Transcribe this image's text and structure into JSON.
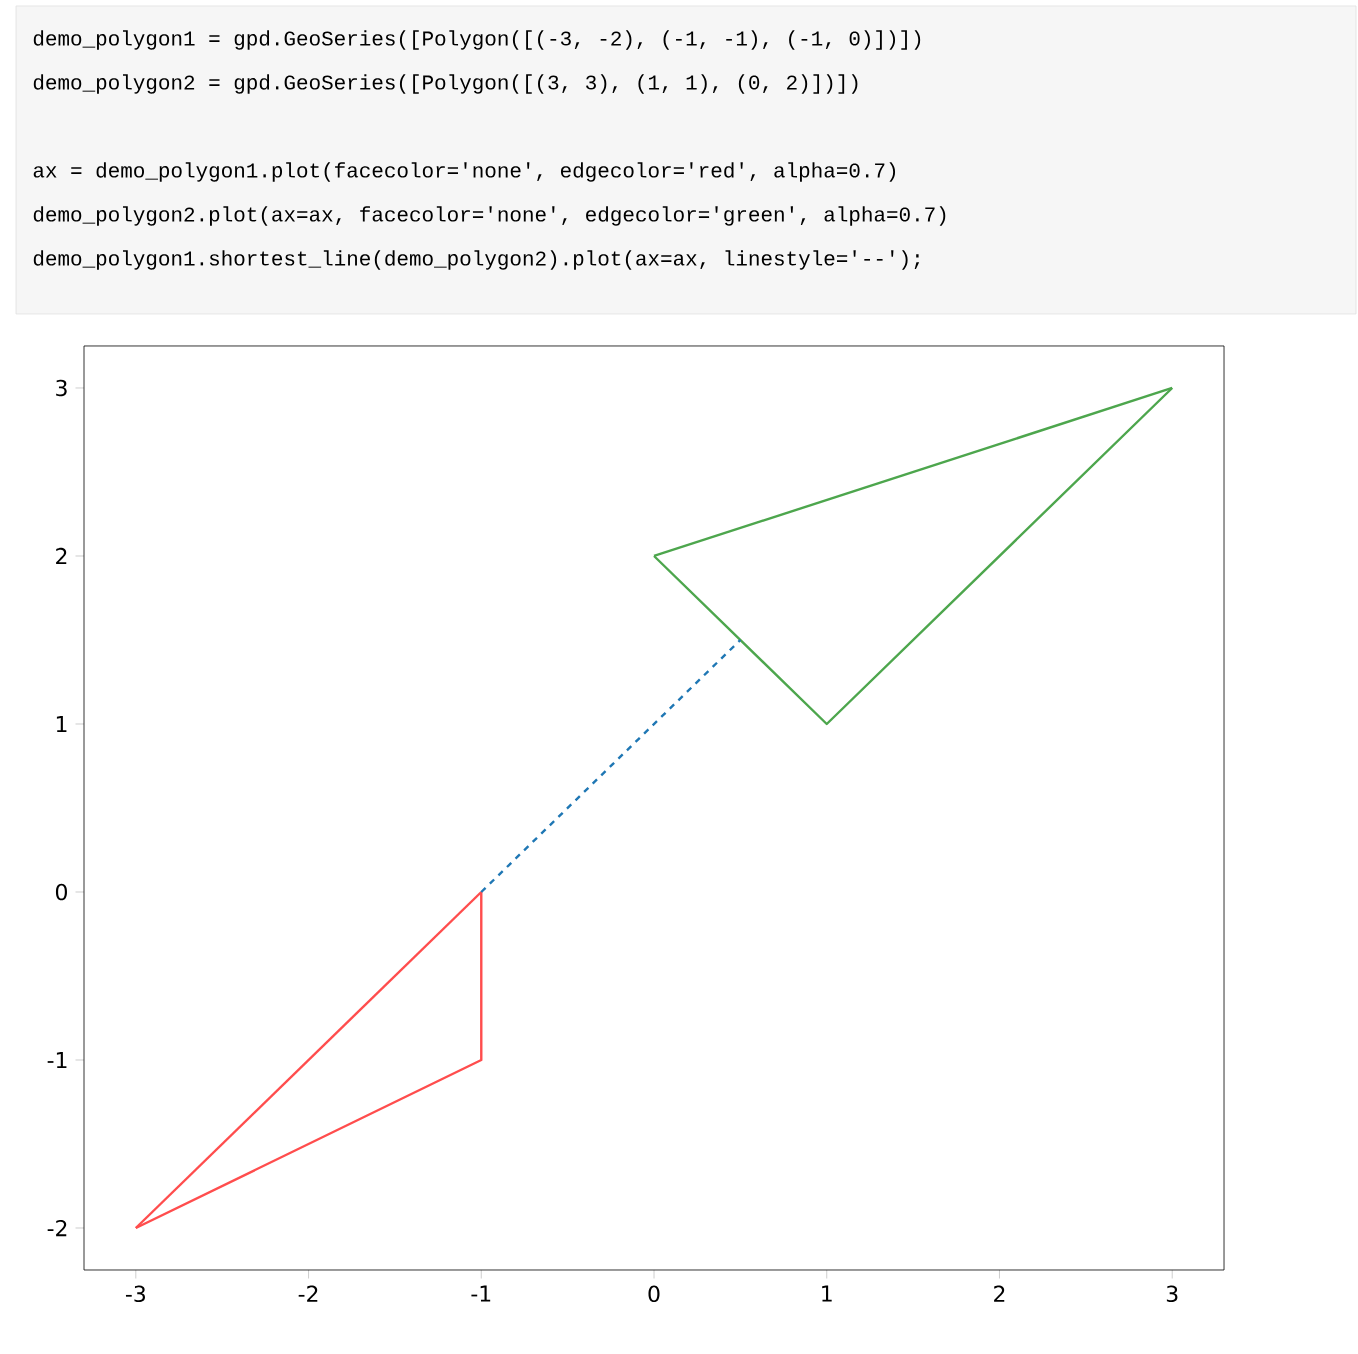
{
  "chart_data": {
    "type": "line",
    "annotations": [
      "demo_polygon1 = gpd.GeoSeries([Polygon([(-3, -2), (-1, -1), (-1, 0)])])",
      "demo_polygon2 = gpd.GeoSeries([Polygon([(3, 3), (1, 1), (0, 2)])])",
      "ax = demo_polygon1.plot(facecolor='none', edgecolor='red', alpha=0.7)",
      "demo_polygon2.plot(ax=ax, facecolor='none', edgecolor='green', alpha=0.7)",
      "demo_polygon1.shortest_line(demo_polygon2).plot(ax=ax, linestyle='--');"
    ],
    "series": [
      {
        "color": "#ff4d4d",
        "line_style": "solid",
        "x": [
          -3,
          -1,
          -1
        ],
        "values": [
          -2,
          -1,
          0
        ]
      },
      {
        "color": "#ff4d4d",
        "line_style": "solid",
        "x": [
          -3,
          -1
        ],
        "values": [
          -2,
          0
        ]
      },
      {
        "color": "#4da64d",
        "line_style": "solid",
        "x": [
          0,
          1,
          3
        ],
        "values": [
          2,
          1,
          3
        ]
      },
      {
        "color": "#4da64d",
        "line_style": "solid",
        "x": [
          0,
          3
        ],
        "values": [
          2,
          3
        ]
      },
      {
        "color": "#1f77b4",
        "line_style": "dashed",
        "x": [
          -1,
          0.5
        ],
        "values": [
          0,
          1.5
        ]
      }
    ],
    "xlim": [
      -3.3,
      3.3
    ],
    "ylim": [
      -2.25,
      3.25
    ],
    "xticks": [
      -3,
      -2,
      -1,
      0,
      1,
      2,
      3
    ],
    "yticks": [
      -2,
      -1,
      0,
      1,
      2,
      3
    ]
  }
}
